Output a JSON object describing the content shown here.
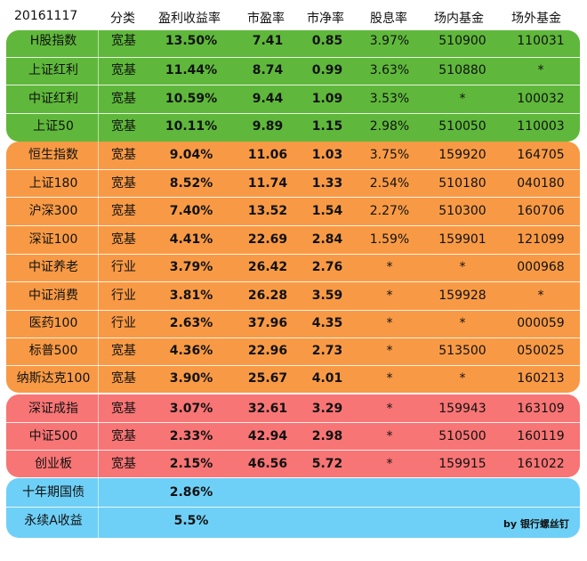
{
  "header": {
    "date": "20161117",
    "category": "分类",
    "earnings_yield": "盈利收益率",
    "pe": "市盈率",
    "pb": "市净率",
    "dividend_yield": "股息率",
    "onmarket_fund": "场内基金",
    "offmarket_fund": "场外基金"
  },
  "rows": [
    {
      "name": "H股指数",
      "category": "宽基",
      "ey": "13.50%",
      "pe": "7.41",
      "pb": "0.85",
      "dy": "3.97%",
      "on": "510900",
      "off": "110031"
    },
    {
      "name": "上证红利",
      "category": "宽基",
      "ey": "11.44%",
      "pe": "8.74",
      "pb": "0.99",
      "dy": "3.63%",
      "on": "510880",
      "off": "*"
    },
    {
      "name": "中证红利",
      "category": "宽基",
      "ey": "10.59%",
      "pe": "9.44",
      "pb": "1.09",
      "dy": "3.53%",
      "on": "*",
      "off": "100032"
    },
    {
      "name": "上证50",
      "category": "宽基",
      "ey": "10.11%",
      "pe": "9.89",
      "pb": "1.15",
      "dy": "2.98%",
      "on": "510050",
      "off": "110003"
    },
    {
      "name": "恒生指数",
      "category": "宽基",
      "ey": "9.04%",
      "pe": "11.06",
      "pb": "1.03",
      "dy": "3.75%",
      "on": "159920",
      "off": "164705"
    },
    {
      "name": "上证180",
      "category": "宽基",
      "ey": "8.52%",
      "pe": "11.74",
      "pb": "1.33",
      "dy": "2.54%",
      "on": "510180",
      "off": "040180"
    },
    {
      "name": "沪深300",
      "category": "宽基",
      "ey": "7.40%",
      "pe": "13.52",
      "pb": "1.54",
      "dy": "2.27%",
      "on": "510300",
      "off": "160706"
    },
    {
      "name": "深证100",
      "category": "宽基",
      "ey": "4.41%",
      "pe": "22.69",
      "pb": "2.84",
      "dy": "1.59%",
      "on": "159901",
      "off": "121099"
    },
    {
      "name": "中证养老",
      "category": "行业",
      "ey": "3.79%",
      "pe": "26.42",
      "pb": "2.76",
      "dy": "*",
      "on": "*",
      "off": "000968"
    },
    {
      "name": "中证消费",
      "category": "行业",
      "ey": "3.81%",
      "pe": "26.28",
      "pb": "3.59",
      "dy": "*",
      "on": "159928",
      "off": "*"
    },
    {
      "name": "医药100",
      "category": "行业",
      "ey": "2.63%",
      "pe": "37.96",
      "pb": "4.35",
      "dy": "*",
      "on": "*",
      "off": "000059"
    },
    {
      "name": "标普500",
      "category": "宽基",
      "ey": "4.36%",
      "pe": "22.96",
      "pb": "2.73",
      "dy": "*",
      "on": "513500",
      "off": "050025"
    },
    {
      "name": "纳斯达克100",
      "category": "宽基",
      "ey": "3.90%",
      "pe": "25.67",
      "pb": "4.01",
      "dy": "*",
      "on": "*",
      "off": "160213"
    },
    {
      "name": "深证成指",
      "category": "宽基",
      "ey": "3.07%",
      "pe": "32.61",
      "pb": "3.29",
      "dy": "*",
      "on": "159943",
      "off": "163109"
    },
    {
      "name": "中证500",
      "category": "宽基",
      "ey": "2.33%",
      "pe": "42.94",
      "pb": "2.98",
      "dy": "*",
      "on": "510500",
      "off": "160119"
    },
    {
      "name": "创业板",
      "category": "宽基",
      "ey": "2.15%",
      "pe": "46.56",
      "pb": "5.72",
      "dy": "*",
      "on": "159915",
      "off": "161022"
    }
  ],
  "bonds": [
    {
      "name": "十年期国债",
      "ey": "2.86%"
    },
    {
      "name": "永续A收益",
      "ey": "5.5%"
    }
  ],
  "credit": "by 银行螺丝钉",
  "colors": {
    "group1": "#5fb83b",
    "group2": "#f89a45",
    "group3": "#f87575",
    "group4": "#6fd0f7"
  }
}
